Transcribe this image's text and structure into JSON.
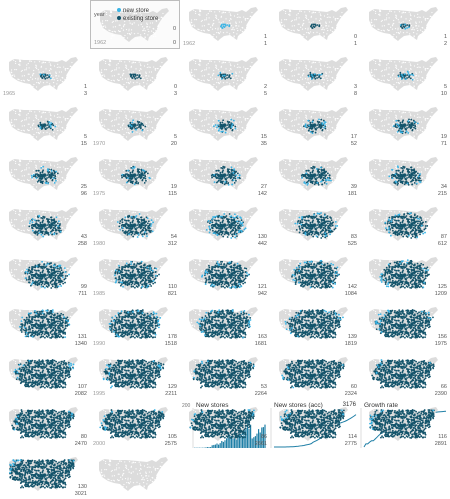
{
  "legend": {
    "new_label": "new store",
    "existing_label": "existing store",
    "year_label": "year",
    "year_value": "1962",
    "new_value": "0",
    "existing_value": "0"
  },
  "colors": {
    "map": "#dcdcdc",
    "new": "#3ab4e5",
    "existing": "#13546b",
    "line": "#1f7fa6"
  },
  "chart_data": {
    "type": "small-multiples-map",
    "panels": [
      {
        "year": "1962",
        "new": 0,
        "existing": 0
      },
      {
        "year": "1962",
        "new": 1,
        "existing": 1
      },
      {
        "year": "",
        "new": 0,
        "existing": 1
      },
      {
        "year": "",
        "new": 1,
        "existing": 2
      },
      {
        "year": "1965",
        "new": 1,
        "existing": 3
      },
      {
        "year": "",
        "new": 0,
        "existing": 3
      },
      {
        "year": "",
        "new": 2,
        "existing": 5
      },
      {
        "year": "",
        "new": 3,
        "existing": 8
      },
      {
        "year": "",
        "new": 5,
        "existing": 10
      },
      {
        "year": "",
        "new": 5,
        "existing": 15
      },
      {
        "year": "1970",
        "new": 5,
        "existing": 20
      },
      {
        "year": "",
        "new": 15,
        "existing": 35
      },
      {
        "year": "",
        "new": 17,
        "existing": 52
      },
      {
        "year": "",
        "new": 19,
        "existing": 71
      },
      {
        "year": "",
        "new": 25,
        "existing": 96
      },
      {
        "year": "1975",
        "new": 19,
        "existing": 115
      },
      {
        "year": "",
        "new": 27,
        "existing": 142
      },
      {
        "year": "",
        "new": 39,
        "existing": 181
      },
      {
        "year": "",
        "new": 34,
        "existing": 215
      },
      {
        "year": "",
        "new": 43,
        "existing": 258
      },
      {
        "year": "1980",
        "new": 54,
        "existing": 312
      },
      {
        "year": "",
        "new": 130,
        "existing": 442
      },
      {
        "year": "",
        "new": 83,
        "existing": 525
      },
      {
        "year": "",
        "new": 87,
        "existing": 612
      },
      {
        "year": "",
        "new": 99,
        "existing": 711
      },
      {
        "year": "1985",
        "new": 110,
        "existing": 821
      },
      {
        "year": "",
        "new": 121,
        "existing": 942
      },
      {
        "year": "",
        "new": 142,
        "existing": 1084
      },
      {
        "year": "",
        "new": 125,
        "existing": 1209
      },
      {
        "year": "",
        "new": 131,
        "existing": 1340
      },
      {
        "year": "1990",
        "new": 178,
        "existing": 1518
      },
      {
        "year": "",
        "new": 163,
        "existing": 1681
      },
      {
        "year": "",
        "new": 139,
        "existing": 1819
      },
      {
        "year": "",
        "new": 156,
        "existing": 1975
      },
      {
        "year": "",
        "new": 107,
        "existing": 2082
      },
      {
        "year": "1995",
        "new": 129,
        "existing": 2211
      },
      {
        "year": "",
        "new": 53,
        "existing": 2264
      },
      {
        "year": "",
        "new": 60,
        "existing": 2324
      },
      {
        "year": "",
        "new": 66,
        "existing": 2390
      },
      {
        "year": "",
        "new": 80,
        "existing": 2470
      },
      {
        "year": "2000",
        "new": 105,
        "existing": 2575
      },
      {
        "year": "",
        "new": 86,
        "existing": 2661
      },
      {
        "year": "",
        "new": 114,
        "existing": 2775
      },
      {
        "year": "",
        "new": 116,
        "existing": 2891
      },
      {
        "year": "",
        "new": 130,
        "existing": 3021
      },
      {
        "year": "",
        "new": null,
        "existing": null
      },
      {
        "year": "",
        "new": null,
        "existing": null
      }
    ],
    "bottom_panels": [
      {
        "title": "New stores",
        "axis_value": "200",
        "values": [
          0,
          1,
          0,
          1,
          1,
          0,
          2,
          3,
          5,
          5,
          5,
          15,
          17,
          19,
          25,
          19,
          27,
          39,
          34,
          43,
          54,
          130,
          83,
          87,
          99,
          110,
          121,
          142,
          125,
          131,
          178,
          163,
          139,
          156,
          107,
          129,
          53,
          60,
          66,
          80,
          105,
          86,
          114,
          116,
          130
        ]
      },
      {
        "title": "New stores (acc)",
        "value": "3176"
      },
      {
        "title": "Growth rate",
        "value": ""
      }
    ]
  }
}
